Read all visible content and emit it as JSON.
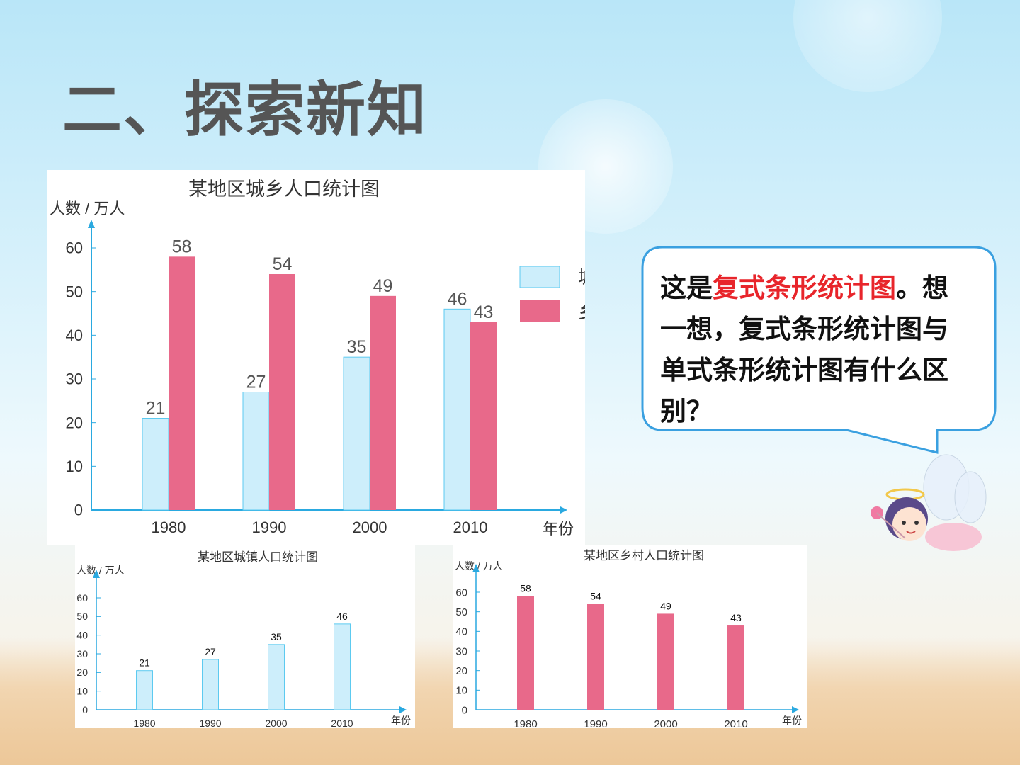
{
  "slide": {
    "title": "二、探索新知"
  },
  "bubble": {
    "pre": "这是",
    "highlight": "复式条形统计图",
    "post": "。想一想，复式条形统计图与单式条形统计图有什么区别？"
  },
  "colors": {
    "urban": "#cdeefb",
    "urban_stroke": "#5ccaf0",
    "rural": "#e8698a",
    "axis": "#2aa9e0"
  },
  "chart_data": [
    {
      "type": "bar",
      "title": "某地区城乡人口统计图",
      "ylabel": "人数 / 万人",
      "xlabel": "年份",
      "categories": [
        "1980",
        "1990",
        "2000",
        "2010"
      ],
      "yticks": [
        "0",
        "10",
        "20",
        "30",
        "40",
        "50",
        "60"
      ],
      "ylim": [
        0,
        60
      ],
      "legend_position": "right",
      "series": [
        {
          "name": "城镇",
          "values": [
            21,
            27,
            35,
            46
          ],
          "labels": [
            "21",
            "27",
            "35",
            "46"
          ]
        },
        {
          "name": "乡村",
          "values": [
            58,
            54,
            49,
            43
          ],
          "labels": [
            "58",
            "54",
            "49",
            "43"
          ]
        }
      ]
    },
    {
      "type": "bar",
      "title": "某地区城镇人口统计图",
      "ylabel": "人数 / 万人",
      "xlabel": "年份",
      "categories": [
        "1980",
        "1990",
        "2000",
        "2010"
      ],
      "yticks": [
        "0",
        "10",
        "20",
        "30",
        "40",
        "50",
        "60"
      ],
      "ylim": [
        0,
        60
      ],
      "series": [
        {
          "values": [
            21,
            27,
            35,
            46
          ],
          "labels": [
            "21",
            "27",
            "35",
            "46"
          ]
        }
      ]
    },
    {
      "type": "bar",
      "title": "某地区乡村人口统计图",
      "ylabel": "人数 / 万人",
      "xlabel": "年份",
      "categories": [
        "1980",
        "1990",
        "2000",
        "2010"
      ],
      "yticks": [
        "0",
        "10",
        "20",
        "30",
        "40",
        "50",
        "60"
      ],
      "ylim": [
        0,
        60
      ],
      "series": [
        {
          "values": [
            58,
            54,
            49,
            43
          ],
          "labels": [
            "58",
            "54",
            "49",
            "43"
          ]
        }
      ]
    }
  ]
}
